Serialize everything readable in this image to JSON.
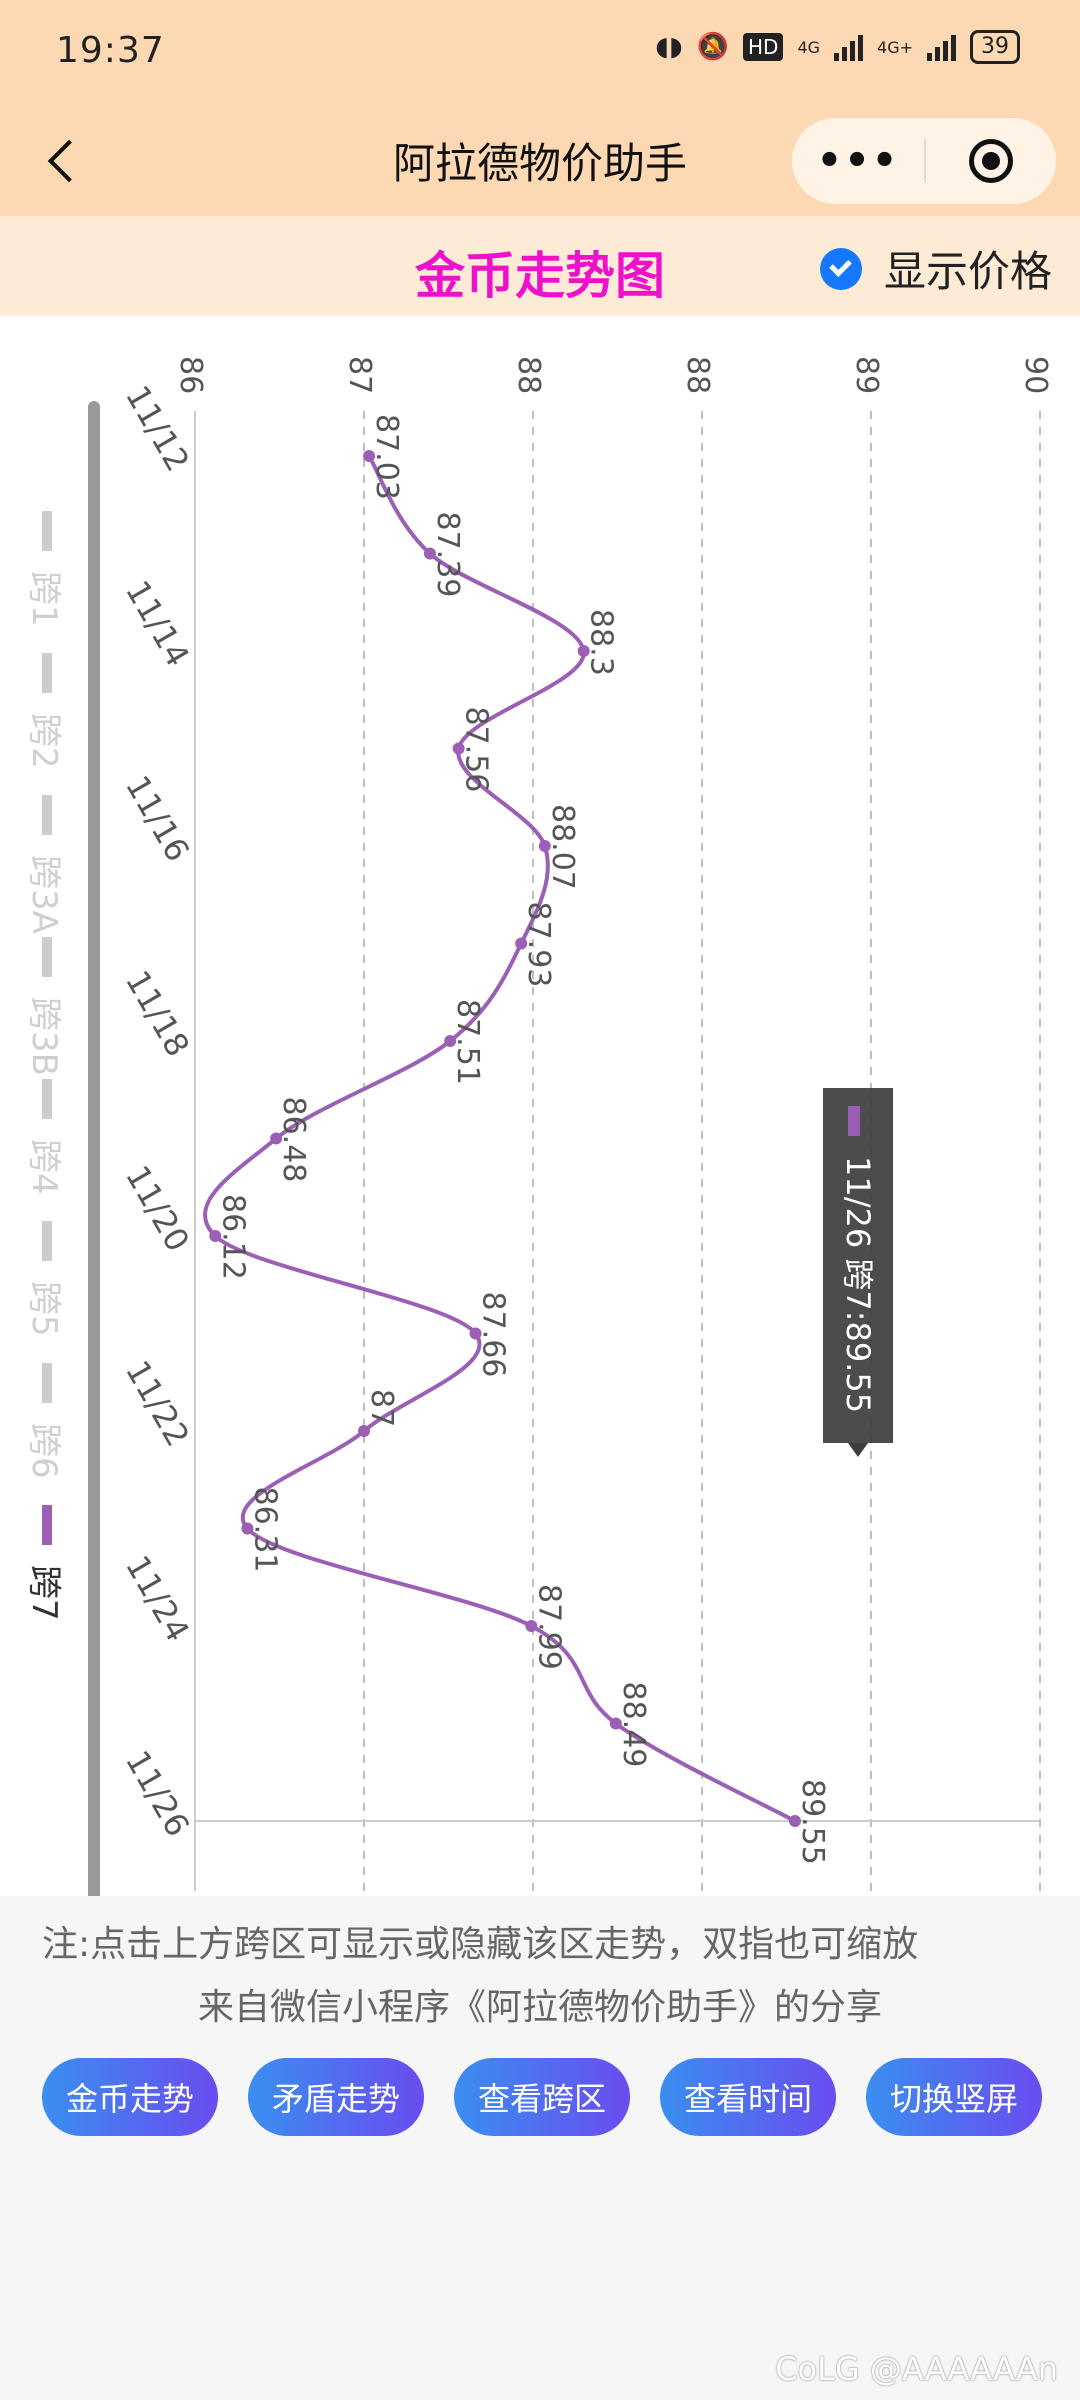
{
  "status": {
    "time": "19:37",
    "network1": "4G",
    "network2": "4G+",
    "battery": "39"
  },
  "nav": {
    "title": "阿拉德物价助手"
  },
  "header": {
    "chart_title": "金币走势图",
    "show_price_label": "显示价格"
  },
  "tooltip": {
    "text": "11/26 跨7:89.55"
  },
  "notes": {
    "line1": "注:点击上方跨区可显示或隐藏该区走势，双指也可缩放",
    "line2": "来自微信小程序《阿拉德物价助手》的分享"
  },
  "buttons": [
    "金币走势",
    "矛盾走势",
    "查看跨区",
    "查看时间",
    "切换竖屏"
  ],
  "watermark": "@AAAAAAn",
  "chart_data": {
    "type": "line",
    "title": "金币走势图",
    "orientation": "rotated-90",
    "value_ticks": [
      "86",
      "87",
      "88",
      "88",
      "89",
      "90"
    ],
    "ylim": [
      86,
      91
    ],
    "date_ticks": [
      "11/12",
      "11/14",
      "11/16",
      "11/18",
      "11/20",
      "11/22",
      "11/24",
      "11/26"
    ],
    "legend": [
      "跨1",
      "跨2",
      "跨3A",
      "跨3B",
      "跨4",
      "跨5",
      "跨6",
      "跨7"
    ],
    "active_series": "跨7",
    "colors": {
      "active": "#9b5fb5",
      "inactive": "#cccccc"
    },
    "series": [
      {
        "name": "跨7",
        "points": [
          {
            "x": "11/12",
            "y": 87.03
          },
          {
            "x": "11/13",
            "y": 87.39
          },
          {
            "x": "11/14",
            "y": 88.3
          },
          {
            "x": "11/15",
            "y": 87.56
          },
          {
            "x": "11/16",
            "y": 88.07
          },
          {
            "x": "11/17",
            "y": 87.93
          },
          {
            "x": "11/18",
            "y": 87.51
          },
          {
            "x": "11/19",
            "y": 86.48
          },
          {
            "x": "11/20",
            "y": 86.12
          },
          {
            "x": "11/21",
            "y": 87.66
          },
          {
            "x": "11/22",
            "y": 87
          },
          {
            "x": "11/23",
            "y": 86.31
          },
          {
            "x": "11/24",
            "y": 87.99
          },
          {
            "x": "11/25",
            "y": 88.49
          },
          {
            "x": "11/26",
            "y": 89.55
          }
        ]
      }
    ]
  }
}
